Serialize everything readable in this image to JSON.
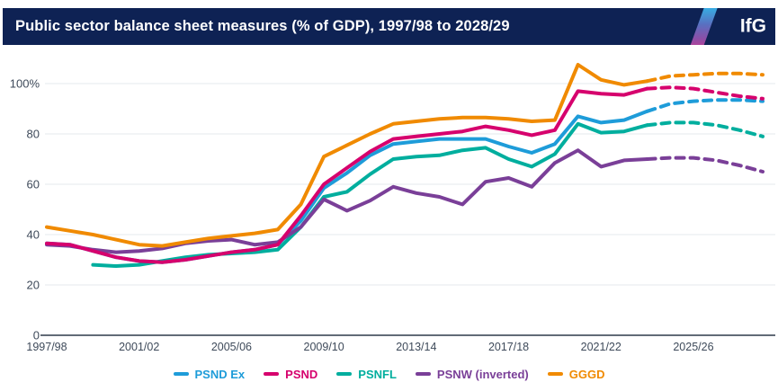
{
  "header": {
    "title": "Public sector balance sheet measures (% of GDP), 1997/98 to 2028/29",
    "logo_text": "IfG",
    "bg_color": "#0E2254"
  },
  "style_colors": {
    "axis_text": "#3E4A5A",
    "gridline": "#E4E8EC",
    "baseline": "#2E3A4A"
  },
  "chart_data": {
    "type": "line",
    "title": "Public sector balance sheet measures (% of GDP), 1997/98 to 2028/29",
    "xlabel": "",
    "ylabel": "% of GDP",
    "ylim": [
      0,
      112
    ],
    "grid": "horizontal",
    "legend_position": "bottom-center",
    "forecast_start_index": 26,
    "forecast_note": "dashed lines from 2023/24 onward indicate forecast",
    "x": [
      "1997/98",
      "1998/99",
      "1999/00",
      "2000/01",
      "2001/02",
      "2002/03",
      "2003/04",
      "2004/05",
      "2005/06",
      "2006/07",
      "2007/08",
      "2008/09",
      "2009/10",
      "2010/11",
      "2011/12",
      "2012/13",
      "2013/14",
      "2014/15",
      "2015/16",
      "2016/17",
      "2017/18",
      "2018/19",
      "2019/20",
      "2020/21",
      "2021/22",
      "2022/23",
      "2023/24",
      "2024/25",
      "2025/26",
      "2026/27",
      "2027/28",
      "2028/29"
    ],
    "x_ticks": [
      "1997/98",
      "2001/02",
      "2005/06",
      "2009/10",
      "2013/14",
      "2017/18",
      "2021/22",
      "2025/26"
    ],
    "x_tick_step": 4,
    "y_ticks": [
      {
        "v": 0,
        "label": "0"
      },
      {
        "v": 20,
        "label": "20"
      },
      {
        "v": 40,
        "label": "40"
      },
      {
        "v": 60,
        "label": "60"
      },
      {
        "v": 80,
        "label": "80"
      },
      {
        "v": 100,
        "label": "100%"
      }
    ],
    "series": [
      {
        "id": "psnd-ex",
        "name": "PSND Ex",
        "color": "#1E9CD9",
        "values": [
          36.5,
          36,
          33.5,
          31,
          29.5,
          29,
          30,
          31.5,
          33,
          34,
          36,
          45.5,
          58.5,
          64.5,
          71.5,
          76,
          77,
          78,
          78,
          78,
          75,
          72.5,
          76,
          87,
          84.5,
          85.5,
          89,
          92,
          93,
          93.5,
          93.5,
          93
        ]
      },
      {
        "id": "psnd",
        "name": "PSND",
        "color": "#D6006D",
        "values": [
          36.5,
          36,
          33.5,
          31,
          29.5,
          29,
          30,
          31.5,
          33,
          34,
          36,
          47.5,
          60,
          66.5,
          73,
          78,
          79,
          80,
          81,
          83,
          81.5,
          79.5,
          81.5,
          97,
          96,
          95.5,
          98,
          98.5,
          98,
          96.5,
          95,
          94
        ]
      },
      {
        "id": "psnfl",
        "name": "PSNFL",
        "color": "#00AE9E",
        "values": [
          null,
          null,
          28,
          27.5,
          28,
          29.5,
          31,
          32,
          32.5,
          33,
          34,
          43,
          55,
          57,
          64,
          70,
          71,
          71.5,
          73.5,
          74.5,
          70,
          67,
          72,
          84,
          80.5,
          81,
          83.5,
          84.5,
          84.5,
          83.5,
          81.5,
          79
        ]
      },
      {
        "id": "psnw",
        "name": "PSNW (inverted)",
        "color": "#7A3F98",
        "values": [
          36,
          35.5,
          34,
          33,
          33.5,
          34.5,
          36.5,
          37.5,
          38,
          36,
          37,
          43,
          54,
          49.5,
          53.5,
          59,
          56.5,
          55,
          52,
          61,
          62.5,
          59,
          68.5,
          73.5,
          67,
          69.5,
          70,
          70.5,
          70.5,
          69.5,
          67.5,
          65
        ]
      },
      {
        "id": "gggd",
        "name": "GGGD",
        "color": "#F08A00",
        "values": [
          43,
          41.5,
          40,
          38,
          36,
          35.5,
          37,
          38.5,
          39.5,
          40.5,
          42,
          52,
          71,
          75.5,
          80,
          84,
          85,
          86,
          86.5,
          86.5,
          86,
          85,
          85.5,
          107.5,
          101.5,
          99.5,
          101,
          103,
          103.5,
          104,
          104,
          103.5
        ]
      }
    ],
    "draw_order": [
      0,
      2,
      3,
      1,
      4
    ]
  }
}
